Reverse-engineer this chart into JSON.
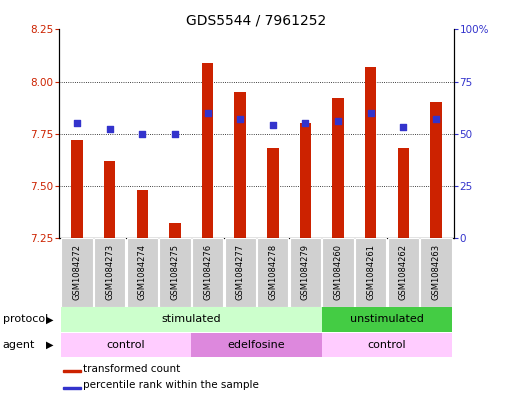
{
  "title": "GDS5544 / 7961252",
  "samples": [
    "GSM1084272",
    "GSM1084273",
    "GSM1084274",
    "GSM1084275",
    "GSM1084276",
    "GSM1084277",
    "GSM1084278",
    "GSM1084279",
    "GSM1084260",
    "GSM1084261",
    "GSM1084262",
    "GSM1084263"
  ],
  "transformed_count": [
    7.72,
    7.62,
    7.48,
    7.32,
    8.09,
    7.95,
    7.68,
    7.8,
    7.92,
    8.07,
    7.68,
    7.9
  ],
  "percentile_rank": [
    55,
    52,
    50,
    50,
    60,
    57,
    54,
    55,
    56,
    60,
    53,
    57
  ],
  "ylim_left": [
    7.25,
    8.25
  ],
  "ylim_right": [
    0,
    100
  ],
  "yticks_left": [
    7.25,
    7.5,
    7.75,
    8.0,
    8.25
  ],
  "yticks_right": [
    0,
    25,
    50,
    75,
    100
  ],
  "ytick_labels_right": [
    "0",
    "25",
    "50",
    "75",
    "100%"
  ],
  "bar_color": "#cc2200",
  "dot_color": "#3333cc",
  "bar_bottom": 7.25,
  "protocol_groups": [
    {
      "label": "stimulated",
      "start": 0,
      "end": 8,
      "color": "#ccffcc"
    },
    {
      "label": "unstimulated",
      "start": 8,
      "end": 12,
      "color": "#44cc44"
    }
  ],
  "agent_groups": [
    {
      "label": "control",
      "start": 0,
      "end": 4,
      "color": "#ffccff"
    },
    {
      "label": "edelfosine",
      "start": 4,
      "end": 8,
      "color": "#dd88dd"
    },
    {
      "label": "control",
      "start": 8,
      "end": 12,
      "color": "#ffccff"
    }
  ],
  "legend_items": [
    {
      "label": "transformed count",
      "color": "#cc2200"
    },
    {
      "label": "percentile rank within the sample",
      "color": "#3333cc"
    }
  ],
  "grid_color": "#000000",
  "background_color": "#ffffff",
  "plot_bg": "#ffffff",
  "title_fontsize": 10,
  "tick_fontsize": 7.5,
  "label_fontsize": 6,
  "row_fontsize": 8,
  "legend_fontsize": 7.5
}
